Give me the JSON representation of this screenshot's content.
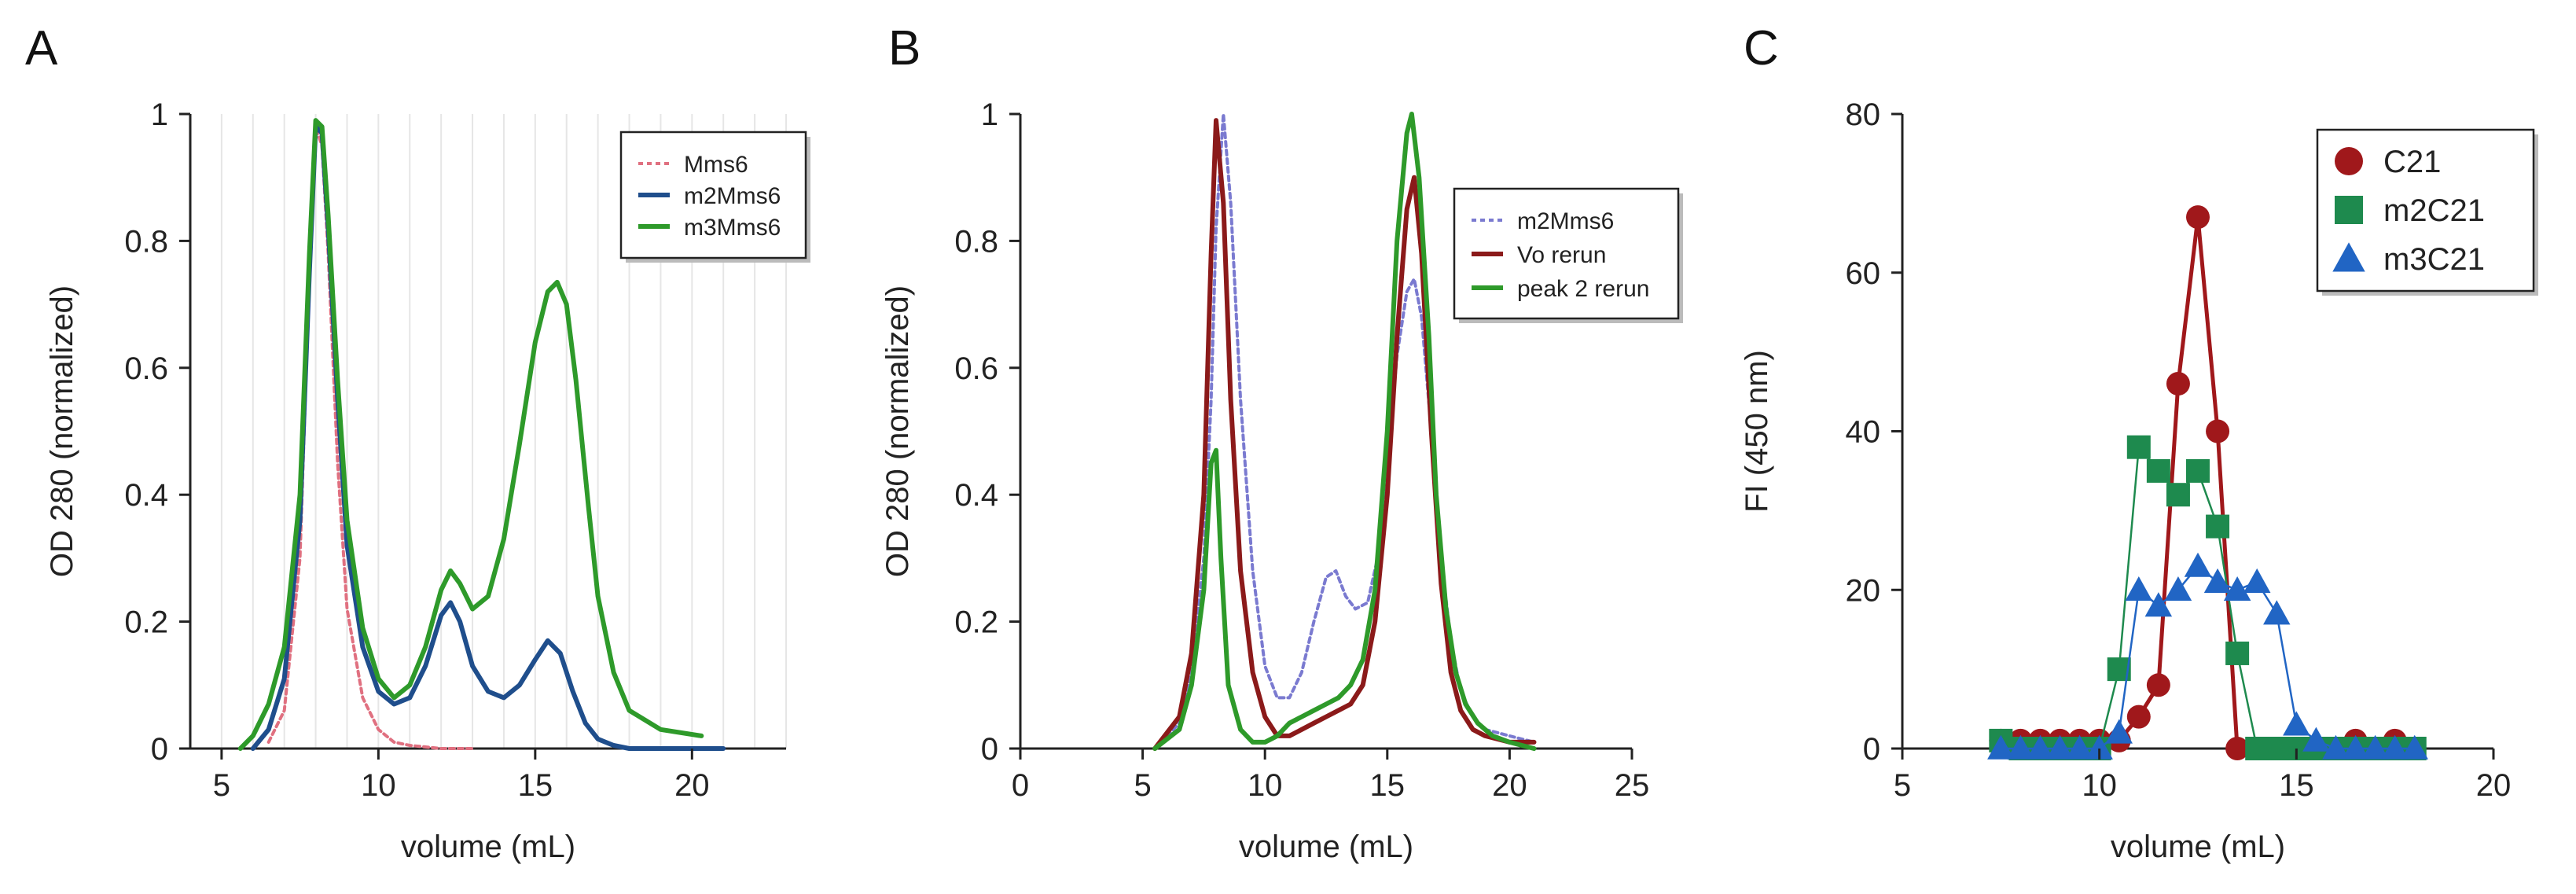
{
  "panels": [
    "A",
    "B",
    "C"
  ],
  "chart_data": [
    {
      "type": "line",
      "panel": "A",
      "xlabel": "volume (mL)",
      "ylabel": "OD 280 (normalized)",
      "xlim": [
        4,
        23
      ],
      "ylim": [
        0,
        1
      ],
      "xticks": [
        5,
        10,
        15,
        20
      ],
      "yticks": [
        0,
        0.2,
        0.4,
        0.6,
        0.8,
        1
      ],
      "ytick_labels": [
        "0",
        "0.2",
        "0.4",
        "0.6",
        "0.8",
        "1"
      ],
      "legend_position": "top-right",
      "series": [
        {
          "name": "Mms6",
          "color": "#e07080",
          "dashed": true,
          "x": [
            6.5,
            7.0,
            7.5,
            7.8,
            8.0,
            8.2,
            8.4,
            8.7,
            9.0,
            9.5,
            10.0,
            10.5,
            11.0,
            12.0,
            13.0
          ],
          "y": [
            0.01,
            0.06,
            0.3,
            0.75,
            0.98,
            0.95,
            0.78,
            0.45,
            0.22,
            0.08,
            0.03,
            0.01,
            0.005,
            0.0,
            0.0
          ]
        },
        {
          "name": "m2Mms6",
          "color": "#1f4e8c",
          "dashed": false,
          "x": [
            6.0,
            6.5,
            7.0,
            7.5,
            7.8,
            8.0,
            8.2,
            8.4,
            8.7,
            9.0,
            9.5,
            10.0,
            10.5,
            11.0,
            11.5,
            12.0,
            12.3,
            12.6,
            13.0,
            13.5,
            14.0,
            14.5,
            15.0,
            15.4,
            15.8,
            16.2,
            16.6,
            17.0,
            17.5,
            18.0,
            19.0,
            21.0
          ],
          "y": [
            0.0,
            0.03,
            0.11,
            0.36,
            0.75,
            0.98,
            0.97,
            0.82,
            0.55,
            0.32,
            0.16,
            0.09,
            0.07,
            0.08,
            0.13,
            0.21,
            0.23,
            0.2,
            0.13,
            0.09,
            0.08,
            0.1,
            0.14,
            0.17,
            0.15,
            0.09,
            0.04,
            0.015,
            0.005,
            0.0,
            0.0,
            0.0
          ]
        },
        {
          "name": "m3Mms6",
          "color": "#2e9a2a",
          "dashed": false,
          "x": [
            5.6,
            6.0,
            6.5,
            7.0,
            7.5,
            7.8,
            8.0,
            8.2,
            8.4,
            8.7,
            9.0,
            9.5,
            10.0,
            10.5,
            11.0,
            11.5,
            12.0,
            12.3,
            12.6,
            13.0,
            13.5,
            14.0,
            14.5,
            15.0,
            15.4,
            15.7,
            16.0,
            16.3,
            16.7,
            17.0,
            17.5,
            18.0,
            19.0,
            20.3
          ],
          "y": [
            0.0,
            0.02,
            0.07,
            0.16,
            0.4,
            0.78,
            0.99,
            0.98,
            0.84,
            0.58,
            0.36,
            0.19,
            0.11,
            0.08,
            0.1,
            0.16,
            0.25,
            0.28,
            0.26,
            0.22,
            0.24,
            0.33,
            0.48,
            0.64,
            0.72,
            0.735,
            0.7,
            0.58,
            0.38,
            0.24,
            0.12,
            0.06,
            0.03,
            0.02
          ]
        }
      ]
    },
    {
      "type": "line",
      "panel": "B",
      "xlabel": "volume (mL)",
      "ylabel": "OD 280 (normalized)",
      "xlim": [
        0,
        25
      ],
      "ylim": [
        0,
        1
      ],
      "xticks": [
        0,
        5,
        10,
        15,
        20,
        25
      ],
      "yticks": [
        0,
        0.2,
        0.4,
        0.6,
        0.8,
        1
      ],
      "ytick_labels": [
        "0",
        "0.2",
        "0.4",
        "0.6",
        "0.8",
        "1"
      ],
      "legend_position": "top-right",
      "series": [
        {
          "name": "m2Mms6",
          "color": "#7a7ad0",
          "dashed": true,
          "x": [
            5.5,
            6.5,
            7.0,
            7.5,
            7.8,
            8.0,
            8.3,
            8.6,
            9.0,
            9.5,
            10.0,
            10.5,
            11.0,
            11.5,
            12.0,
            12.5,
            12.9,
            13.3,
            13.7,
            14.2,
            14.6,
            15.0,
            15.4,
            15.8,
            16.1,
            16.4,
            16.8,
            17.2,
            17.6,
            18.0,
            18.5,
            19.0,
            20.0,
            21.0
          ],
          "y": [
            0.0,
            0.04,
            0.12,
            0.3,
            0.55,
            0.82,
            1.0,
            0.86,
            0.55,
            0.28,
            0.13,
            0.08,
            0.08,
            0.12,
            0.2,
            0.27,
            0.28,
            0.24,
            0.22,
            0.23,
            0.3,
            0.45,
            0.62,
            0.72,
            0.74,
            0.68,
            0.5,
            0.3,
            0.17,
            0.09,
            0.05,
            0.03,
            0.02,
            0.01
          ]
        },
        {
          "name": "Vo rerun",
          "color": "#8b1a1a",
          "dashed": false,
          "x": [
            5.5,
            6.5,
            7.0,
            7.5,
            7.8,
            8.0,
            8.3,
            8.6,
            9.0,
            9.5,
            10.0,
            10.5,
            11.0,
            11.5,
            12.0,
            12.5,
            13.0,
            13.5,
            14.0,
            14.5,
            15.0,
            15.4,
            15.8,
            16.1,
            16.4,
            16.8,
            17.2,
            17.6,
            18.0,
            18.5,
            19.0,
            20.0,
            21.0
          ],
          "y": [
            0.0,
            0.05,
            0.15,
            0.4,
            0.78,
            0.99,
            0.86,
            0.55,
            0.28,
            0.12,
            0.05,
            0.02,
            0.02,
            0.03,
            0.04,
            0.05,
            0.06,
            0.07,
            0.1,
            0.2,
            0.4,
            0.65,
            0.85,
            0.9,
            0.78,
            0.5,
            0.26,
            0.12,
            0.06,
            0.03,
            0.02,
            0.01,
            0.01
          ]
        },
        {
          "name": "peak 2 rerun",
          "color": "#2e9a2a",
          "dashed": false,
          "x": [
            5.5,
            6.5,
            7.0,
            7.5,
            7.8,
            8.0,
            8.2,
            8.5,
            9.0,
            9.5,
            10.0,
            10.5,
            11.0,
            11.5,
            12.0,
            12.5,
            13.0,
            13.5,
            14.0,
            14.5,
            15.0,
            15.4,
            15.8,
            16.0,
            16.3,
            16.7,
            17.0,
            17.4,
            17.8,
            18.2,
            18.7,
            19.3,
            20.0,
            21.0
          ],
          "y": [
            0.0,
            0.03,
            0.1,
            0.25,
            0.45,
            0.47,
            0.3,
            0.1,
            0.03,
            0.01,
            0.01,
            0.02,
            0.04,
            0.05,
            0.06,
            0.07,
            0.08,
            0.1,
            0.14,
            0.25,
            0.5,
            0.8,
            0.97,
            1.0,
            0.9,
            0.65,
            0.4,
            0.22,
            0.12,
            0.07,
            0.04,
            0.02,
            0.01,
            0.0
          ]
        }
      ]
    },
    {
      "type": "scatter",
      "panel": "C",
      "xlabel": "volume (mL)",
      "ylabel": "FI (450 nm)",
      "xlim": [
        5,
        20
      ],
      "ylim": [
        0,
        80
      ],
      "xticks": [
        5,
        10,
        15,
        20
      ],
      "yticks": [
        0,
        20,
        40,
        60,
        80
      ],
      "legend_position": "top-right",
      "series": [
        {
          "name": "C21",
          "color": "#a0181b",
          "marker": "circle",
          "x": [
            7.5,
            8.0,
            8.5,
            9.0,
            9.5,
            10.0,
            10.5,
            11.0,
            11.5,
            12.0,
            12.5,
            13.0,
            13.5,
            14.0,
            14.5,
            15.0,
            15.5,
            16.0,
            16.5,
            17.0,
            17.5,
            18.0
          ],
          "y": [
            1,
            1,
            1,
            1,
            1,
            1,
            1,
            4,
            8,
            46,
            67,
            40,
            0,
            0,
            0,
            0,
            0,
            0,
            1,
            0,
            1,
            0
          ]
        },
        {
          "name": "m2C21",
          "color": "#1e8a4e",
          "marker": "square",
          "x": [
            7.5,
            8.0,
            8.5,
            9.0,
            9.5,
            10.0,
            10.5,
            11.0,
            11.5,
            12.0,
            12.5,
            13.0,
            13.5,
            14.0,
            14.5,
            15.0,
            15.5,
            16.0,
            16.5,
            17.0,
            17.5,
            18.0
          ],
          "y": [
            1,
            0,
            0,
            0,
            0,
            0,
            10,
            38,
            35,
            32,
            35,
            28,
            12,
            0,
            0,
            0,
            0,
            0,
            0,
            0,
            0,
            0
          ]
        },
        {
          "name": "m3C21",
          "color": "#2165c4",
          "marker": "triangle",
          "x": [
            7.5,
            8.0,
            8.5,
            9.0,
            9.5,
            10.0,
            10.5,
            11.0,
            11.5,
            12.0,
            12.5,
            13.0,
            13.5,
            14.0,
            14.5,
            15.0,
            15.5,
            16.0,
            16.5,
            17.0,
            17.5,
            18.0
          ],
          "y": [
            0,
            0,
            0,
            0,
            0,
            0,
            2,
            20,
            18,
            20,
            23,
            21,
            20,
            21,
            17,
            3,
            1,
            0,
            0,
            0,
            0,
            0
          ]
        }
      ]
    }
  ]
}
